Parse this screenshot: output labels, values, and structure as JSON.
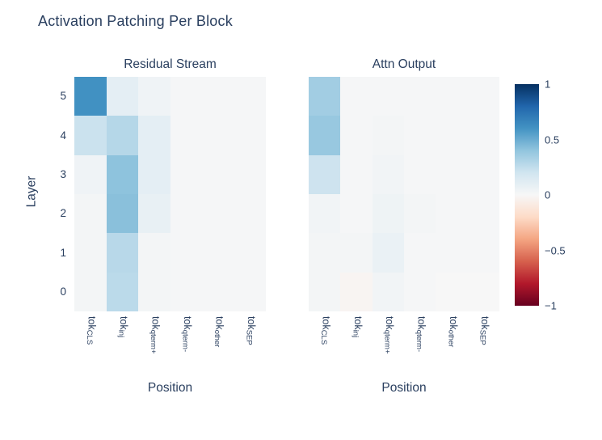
{
  "title": "Activation Patching Per Block",
  "text_color": "#2a3f5f",
  "background_color": "#ffffff",
  "chart_data": [
    {
      "type": "heatmap",
      "title": "Residual Stream",
      "xlabel": "Position",
      "ylabel": "Layer",
      "x_ticks": [
        {
          "base": "tok",
          "sub": "CLS"
        },
        {
          "base": "tok",
          "sub": "inj"
        },
        {
          "base": "tok",
          "sub": "qterm+"
        },
        {
          "base": "tok",
          "sub": "qterm-"
        },
        {
          "base": "tok",
          "sub": "other"
        },
        {
          "base": "tok",
          "sub": "SEP"
        }
      ],
      "y_ticks_top_to_bottom": [
        "5",
        "4",
        "3",
        "2",
        "1",
        "0"
      ],
      "zmin": -1,
      "zmax": 1,
      "colorscale": "RdBu",
      "values_rows_layer5_to_layer0": [
        [
          0.61,
          0.1,
          0.04,
          0.01,
          0.01,
          0.01
        ],
        [
          0.22,
          0.29,
          0.1,
          0.01,
          0.01,
          0.01
        ],
        [
          0.04,
          0.41,
          0.1,
          0.01,
          0.01,
          0.01
        ],
        [
          0.02,
          0.42,
          0.08,
          0.01,
          0.01,
          0.01
        ],
        [
          0.02,
          0.28,
          0.02,
          0.01,
          0.01,
          0.01
        ],
        [
          0.02,
          0.27,
          0.02,
          0.01,
          0.01,
          0.01
        ]
      ]
    },
    {
      "type": "heatmap",
      "title": "Attn Output",
      "xlabel": "Position",
      "ylabel": "Layer",
      "x_ticks": [
        {
          "base": "tok",
          "sub": "CLS"
        },
        {
          "base": "tok",
          "sub": "inj"
        },
        {
          "base": "tok",
          "sub": "qterm+"
        },
        {
          "base": "tok",
          "sub": "qterm-"
        },
        {
          "base": "tok",
          "sub": "other"
        },
        {
          "base": "tok",
          "sub": "SEP"
        }
      ],
      "y_ticks_top_to_bottom": [
        "5",
        "4",
        "3",
        "2",
        "1",
        "0"
      ],
      "zmin": -1,
      "zmax": 1,
      "colorscale": "RdBu",
      "values_rows_layer5_to_layer0": [
        [
          0.35,
          0.01,
          0.01,
          0.01,
          0.01,
          0.01
        ],
        [
          0.38,
          0.01,
          0.02,
          0.01,
          0.01,
          0.01
        ],
        [
          0.21,
          0.01,
          0.03,
          0.01,
          0.01,
          0.01
        ],
        [
          0.03,
          0.01,
          0.05,
          0.02,
          0.01,
          0.01
        ],
        [
          0.02,
          0.02,
          0.07,
          0.01,
          0.01,
          0.01
        ],
        [
          0.02,
          -0.02,
          0.03,
          0.01,
          0.0,
          0.0
        ]
      ]
    }
  ],
  "colorbar": {
    "tick_labels_top_to_bottom": [
      "1",
      "0.5",
      "0",
      "−0.5",
      "−1"
    ],
    "gradient_stops_top_to_bottom": [
      "#053061",
      "#2166ac",
      "#4393c3",
      "#92c5de",
      "#d1e5f0",
      "#f7f7f7",
      "#fddbc7",
      "#f4a582",
      "#d6604d",
      "#b2182b",
      "#67001f"
    ]
  }
}
